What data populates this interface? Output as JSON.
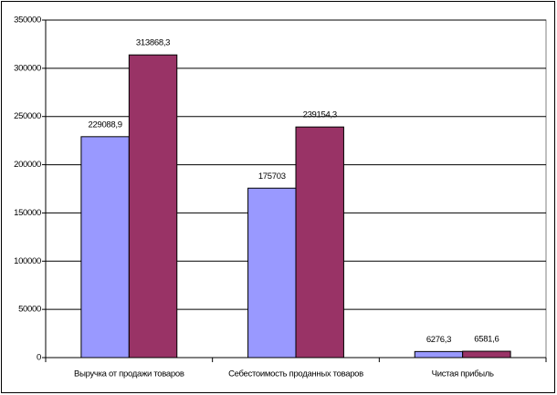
{
  "chart_data": {
    "type": "bar",
    "categories": [
      "Выручка от продажи товаров",
      "Себестоимость проданных товаров",
      "Чистая прибыль"
    ],
    "series": [
      {
        "color": "#9999ff",
        "values": [
          229088.9,
          175703,
          6276.3
        ],
        "value_labels": [
          "229088,9",
          "175703",
          "6276,3"
        ]
      },
      {
        "color": "#993366",
        "values": [
          313868.3,
          239154.3,
          6581.6
        ],
        "value_labels": [
          "313868,3",
          "239154,3",
          "6581,6"
        ]
      }
    ],
    "ylim": [
      0,
      350000
    ],
    "yticks": [
      0,
      50000,
      100000,
      150000,
      200000,
      250000,
      300000,
      350000
    ],
    "grid": true
  }
}
